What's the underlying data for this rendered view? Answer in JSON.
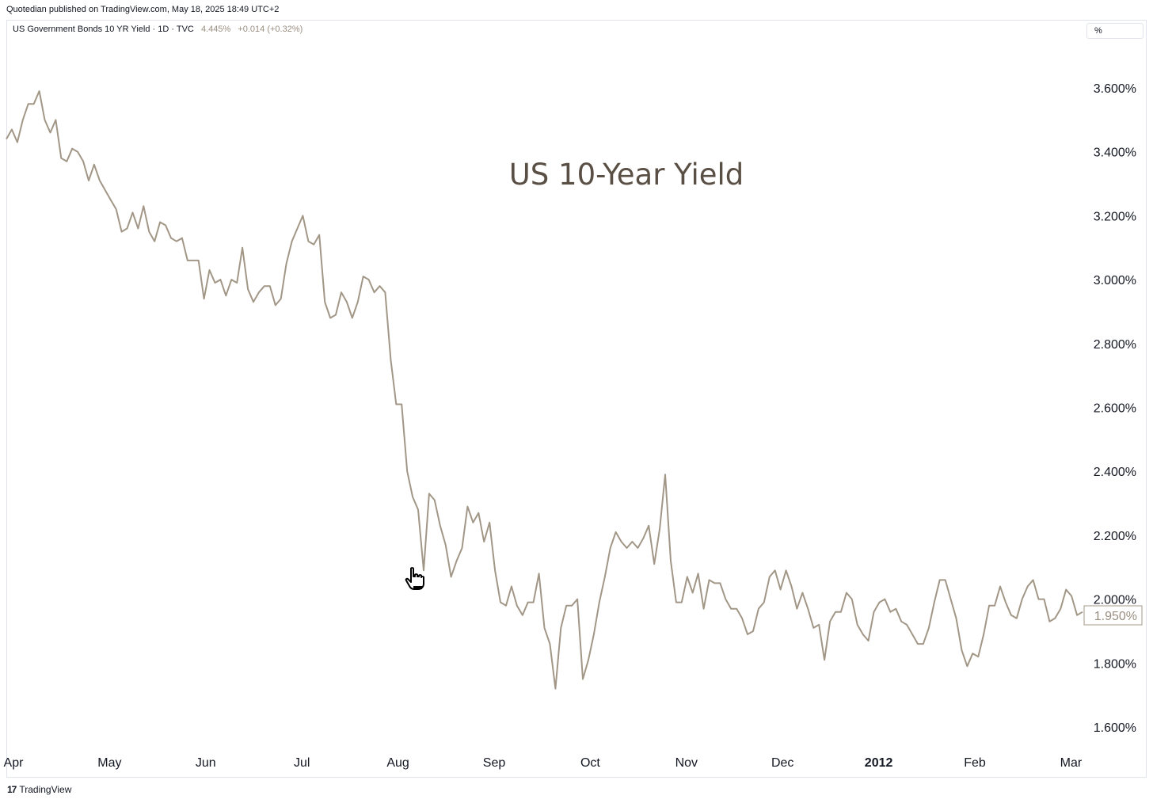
{
  "header": {
    "published": "Quotedian published on TradingView.com, May 18, 2025 18:49 UTC+2"
  },
  "legend": {
    "symbol": "US Government Bonds 10 YR Yield · 1D · TVC",
    "price": "4.445%",
    "change": "+0.014 (+0.32%)"
  },
  "unit_selector": {
    "label": "%"
  },
  "footer": {
    "brand": "TradingView",
    "logo_icon": "tradingview-logo-icon"
  },
  "colors": {
    "line": "#a29787",
    "title": "#5a4f44",
    "axis_text": "#131722",
    "price_tag": "#9a8e80"
  },
  "chart_data": {
    "type": "line",
    "title": "US 10-Year Yield",
    "y_unit": "%",
    "ylim": [
      1.55,
      3.72
    ],
    "y_ticks": [
      3.6,
      3.4,
      3.2,
      3.0,
      2.8,
      2.6,
      2.4,
      2.2,
      2.0,
      1.8,
      1.6
    ],
    "y_tick_labels": [
      "3.600%",
      "3.400%",
      "3.200%",
      "3.000%",
      "2.800%",
      "2.600%",
      "2.400%",
      "2.200%",
      "2.000%",
      "1.800%",
      "1.600%"
    ],
    "x_tick_labels": [
      "Apr",
      "May",
      "Jun",
      "Jul",
      "Aug",
      "Sep",
      "Oct",
      "Nov",
      "Dec",
      "2012",
      "Feb",
      "Mar"
    ],
    "x_tick_bold": [
      false,
      false,
      false,
      false,
      false,
      false,
      false,
      false,
      false,
      true,
      false,
      false
    ],
    "last_value_label": "1.950%",
    "grid": false,
    "legend": "none",
    "series": [
      {
        "values": [
          3.44,
          3.47,
          3.43,
          3.5,
          3.55,
          3.55,
          3.59,
          3.5,
          3.46,
          3.5,
          3.38,
          3.37,
          3.41,
          3.4,
          3.37,
          3.31,
          3.36,
          3.31,
          3.28,
          3.25,
          3.22,
          3.15,
          3.16,
          3.21,
          3.16,
          3.23,
          3.15,
          3.12,
          3.18,
          3.17,
          3.13,
          3.12,
          3.13,
          3.06,
          3.06,
          3.06,
          2.94,
          3.03,
          2.99,
          3.0,
          2.95,
          3.0,
          2.99,
          3.1,
          2.97,
          2.93,
          2.96,
          2.98,
          2.98,
          2.92,
          2.94,
          3.05,
          3.12,
          3.16,
          3.2,
          3.12,
          3.11,
          3.14,
          2.93,
          2.88,
          2.89,
          2.96,
          2.93,
          2.88,
          2.93,
          3.01,
          3.0,
          2.96,
          2.98,
          2.96,
          2.75,
          2.61,
          2.61,
          2.4,
          2.32,
          2.28,
          2.09,
          2.33,
          2.31,
          2.23,
          2.17,
          2.07,
          2.12,
          2.16,
          2.29,
          2.24,
          2.27,
          2.18,
          2.24,
          2.09,
          1.99,
          1.98,
          2.04,
          1.98,
          1.95,
          1.99,
          1.99,
          2.08,
          1.91,
          1.86,
          1.72,
          1.91,
          1.98,
          1.98,
          2.0,
          1.75,
          1.81,
          1.89,
          1.99,
          2.07,
          2.16,
          2.21,
          2.18,
          2.16,
          2.18,
          2.16,
          2.19,
          2.23,
          2.11,
          2.22,
          2.39,
          2.12,
          1.99,
          1.99,
          2.07,
          2.02,
          2.08,
          1.97,
          2.06,
          2.05,
          2.05,
          2.0,
          1.97,
          1.97,
          1.94,
          1.89,
          1.9,
          1.97,
          1.99,
          2.07,
          2.09,
          2.03,
          2.09,
          2.04,
          1.97,
          2.02,
          1.97,
          1.91,
          1.92,
          1.81,
          1.93,
          1.96,
          1.96,
          2.02,
          2.0,
          1.92,
          1.89,
          1.87,
          1.96,
          1.99,
          2.0,
          1.96,
          1.97,
          1.93,
          1.92,
          1.89,
          1.86,
          1.86,
          1.91,
          1.99,
          2.06,
          2.06,
          2.0,
          1.94,
          1.84,
          1.79,
          1.83,
          1.82,
          1.89,
          1.98,
          1.98,
          2.04,
          1.99,
          1.95,
          1.94,
          2.0,
          2.04,
          2.06,
          2.0,
          2.0,
          1.93,
          1.94,
          1.97,
          2.03,
          2.01,
          1.95,
          1.96
        ]
      }
    ]
  }
}
